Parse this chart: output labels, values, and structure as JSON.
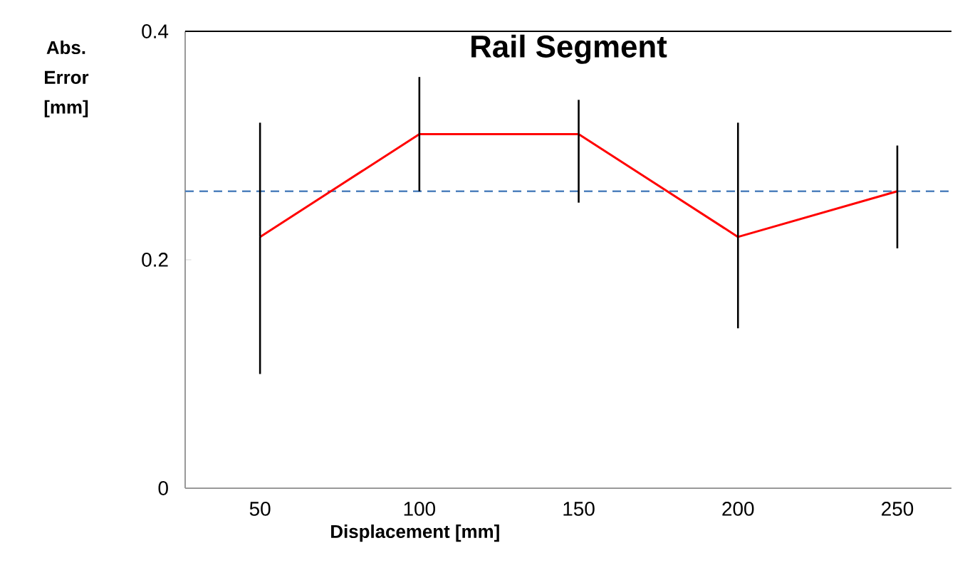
{
  "chart_data": {
    "type": "line",
    "title": "Rail Segment",
    "xlabel": "Displacement [mm]",
    "ylabel": "Abs. Error [mm]",
    "categories": [
      "50",
      "100",
      "150",
      "200",
      "250"
    ],
    "series": [
      {
        "color": "#ff0000",
        "values": [
          0.22,
          0.31,
          0.31,
          0.22,
          0.26
        ],
        "errors": [
          [
            0.1,
            0.32
          ],
          [
            0.26,
            0.36
          ],
          [
            0.25,
            0.34
          ],
          [
            0.14,
            0.32
          ],
          [
            0.21,
            0.3
          ]
        ]
      }
    ],
    "ylim": [
      0,
      0.4
    ],
    "yticks": [
      0,
      0.2,
      0.4
    ],
    "ref_lines": [
      {
        "axis": "y",
        "value": 0.26,
        "color": "#4f81bd",
        "line_style": "dashed"
      }
    ],
    "grid": false
  }
}
